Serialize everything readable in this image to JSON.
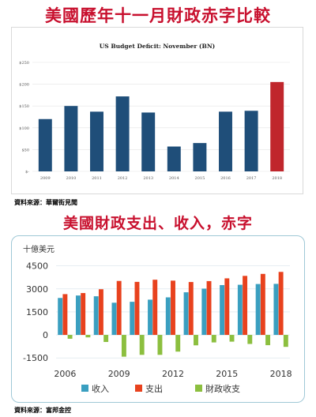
{
  "title1": "美國歷年十一月財政赤字比較",
  "title2": "美國財政支出、收入，赤字",
  "source1": "資料來源：華爾街見聞",
  "source2": "資料來源：富邦金控",
  "colors": {
    "title": "#c8102e",
    "bar_blue": "#1f4e79",
    "bar_red": "#c0262c",
    "revenue": "#3a9fc0",
    "spending": "#e8421e",
    "deficit": "#8cbf3f"
  },
  "chart_data": [
    {
      "type": "bar",
      "title": "US Budget Deficit: November (BN)",
      "categories": [
        "2009",
        "2010",
        "2011",
        "2012",
        "2013",
        "2014",
        "2015",
        "2016",
        "2017",
        "2018"
      ],
      "values": [
        120,
        150,
        137,
        172,
        135,
        57,
        65,
        137,
        139,
        205
      ],
      "highlight_index": 9,
      "y_ticks": [
        "$-",
        "$50",
        "$100",
        "$150",
        "$200",
        "$250"
      ],
      "ylim": [
        0,
        250
      ],
      "grid": true
    },
    {
      "type": "bar",
      "unit_label": "十億美元",
      "x": [
        "2006",
        "2007",
        "2008",
        "2009",
        "2010",
        "2011",
        "2012",
        "2013",
        "2014",
        "2015",
        "2016",
        "2017",
        "2018"
      ],
      "x_tick_labels": [
        "2006",
        "2009",
        "2012",
        "2015",
        "2018"
      ],
      "y_ticks": [
        "-1500",
        "0",
        "1500",
        "3000",
        "4500"
      ],
      "ylim": [
        -1800,
        5000
      ],
      "series": [
        {
          "name": "收入",
          "values": [
            2410,
            2570,
            2520,
            2100,
            2160,
            2300,
            2450,
            2780,
            3020,
            3250,
            3270,
            3320,
            3330
          ]
        },
        {
          "name": "支出",
          "values": [
            2660,
            2730,
            2980,
            3520,
            3460,
            3600,
            3540,
            3450,
            3510,
            3690,
            3850,
            3980,
            4110
          ]
        },
        {
          "name": "財政收支",
          "values": [
            -250,
            -160,
            -460,
            -1420,
            -1300,
            -1300,
            -1090,
            -680,
            -490,
            -440,
            -590,
            -670,
            -780
          ]
        }
      ]
    }
  ]
}
